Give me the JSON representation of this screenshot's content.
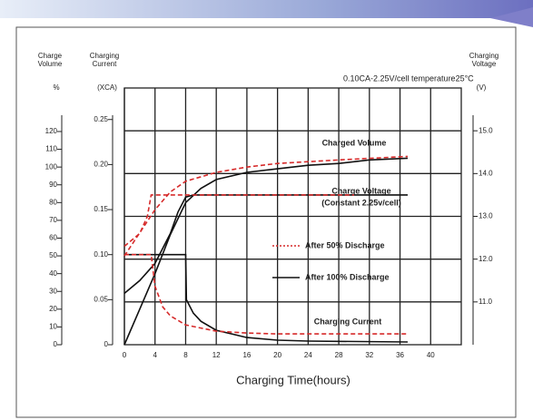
{
  "chart_data": {
    "type": "line",
    "annotation": "0.10CA-2.25V/cell   temperature25°C",
    "curve_labels": [
      "Charged Volume",
      "Charge Voltage",
      "(Constant 2.25v/cell)",
      "Charging Current"
    ],
    "x_label": "Charging Time(hours)",
    "xlim": [
      0,
      44
    ],
    "xticks": [
      0,
      4,
      8,
      12,
      16,
      20,
      24,
      28,
      32,
      36,
      40
    ],
    "y_label": [
      "Charge",
      "Volume"
    ],
    "y_unit": "%",
    "ylim": [
      0,
      144.5
    ],
    "yticks": [
      0,
      10,
      20,
      30,
      40,
      50,
      60,
      70,
      80,
      90,
      100,
      110,
      120
    ],
    "y3_label": [
      "Charging",
      "Current"
    ],
    "y3_unit": "(XCA)",
    "y3lim": [
      0,
      0.285
    ],
    "y3ticks": [
      0,
      0.05,
      {
        "value": 0.1,
        "label": "0.10"
      },
      0.15,
      {
        "value": 0.2,
        "label": "0.20"
      },
      0.25
    ],
    "y2_label": [
      "Charging",
      "Voltage"
    ],
    "y2_unit": "(V)",
    "y2lim": [
      10,
      16
    ],
    "y2ticks": [
      {
        "value": 11,
        "label": "11.0"
      },
      {
        "value": 12,
        "label": "12.0"
      },
      {
        "value": 13,
        "label": "13.0"
      },
      {
        "value": 14,
        "label": "14.0"
      },
      {
        "value": 15,
        "label": "15.0"
      }
    ],
    "grid": true,
    "series": [
      {
        "name": "After 100% Discharge",
        "color": "#111111",
        "dash": false,
        "axis": "y",
        "x": [
          0,
          2,
          4,
          6,
          8,
          10,
          12,
          16,
          20,
          24,
          28,
          32,
          37
        ],
        "values": [
          0,
          20,
          40,
          62,
          80,
          88,
          93,
          97,
          99,
          101,
          102,
          104,
          105
        ]
      },
      {
        "name": "After 100% Discharge",
        "color": "#111111",
        "dash": false,
        "axis": "y2",
        "x": [
          0,
          2,
          4,
          6,
          7,
          8,
          9,
          37
        ],
        "values": [
          11.2,
          11.5,
          11.9,
          12.6,
          13.1,
          13.45,
          13.5,
          13.5
        ]
      },
      {
        "name": "After 100% Discharge",
        "color": "#111111",
        "dash": false,
        "axis": "y3",
        "x": [
          0,
          8,
          8.1,
          9,
          10,
          12,
          16,
          20,
          24,
          37
        ],
        "values": [
          0.1,
          0.1,
          0.05,
          0.035,
          0.026,
          0.016,
          0.008,
          0.005,
          0.004,
          0.003
        ]
      },
      {
        "name": "After 50% Discharge",
        "color": "#d62a2a",
        "dash": true,
        "axis": "y",
        "x": [
          0,
          2,
          4,
          6,
          8,
          12,
          16,
          20,
          28,
          37
        ],
        "values": [
          50,
          63,
          76,
          86,
          92,
          97,
          100,
          102,
          104,
          106
        ]
      },
      {
        "name": "After 50% Discharge",
        "color": "#d62a2a",
        "dash": true,
        "axis": "y2",
        "x": [
          0,
          2,
          3,
          3.5,
          30
        ],
        "values": [
          12.3,
          12.6,
          13.0,
          13.5,
          13.5
        ]
      },
      {
        "name": "After 50% Discharge",
        "color": "#d62a2a",
        "dash": true,
        "axis": "y3",
        "x": [
          0,
          3.5,
          4,
          5,
          6,
          8,
          12,
          16,
          20,
          28,
          37
        ],
        "values": [
          0.1,
          0.1,
          0.065,
          0.042,
          0.032,
          0.022,
          0.015,
          0.013,
          0.012,
          0.012,
          0.012
        ]
      }
    ]
  }
}
